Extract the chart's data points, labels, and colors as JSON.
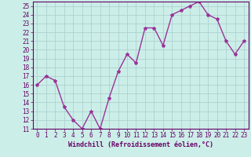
{
  "x": [
    0,
    1,
    2,
    3,
    4,
    5,
    6,
    7,
    8,
    9,
    10,
    11,
    12,
    13,
    14,
    15,
    16,
    17,
    18,
    19,
    20,
    21,
    22,
    23
  ],
  "y": [
    16,
    17,
    16.5,
    13.5,
    12,
    11,
    13,
    11,
    14.5,
    17.5,
    19.5,
    18.5,
    22.5,
    22.5,
    20.5,
    24,
    24.5,
    25,
    25.5,
    24,
    23.5,
    21,
    19.5,
    21
  ],
  "xlabel": "Windchill (Refroidissement éolien,°C)",
  "ylim": [
    11,
    25.5
  ],
  "xlim": [
    -0.5,
    23.5
  ],
  "yticks": [
    11,
    12,
    13,
    14,
    15,
    16,
    17,
    18,
    19,
    20,
    21,
    22,
    23,
    24,
    25
  ],
  "xticks": [
    0,
    1,
    2,
    3,
    4,
    5,
    6,
    7,
    8,
    9,
    10,
    11,
    12,
    13,
    14,
    15,
    16,
    17,
    18,
    19,
    20,
    21,
    22,
    23
  ],
  "line_color": "#993399",
  "marker": "*",
  "marker_size": 3,
  "linewidth": 1.0,
  "bg_color": "#cceee8",
  "grid_color": "#aacccc",
  "label_color": "#660066",
  "tick_color": "#660066",
  "spine_color": "#660066",
  "tick_fontsize": 5.5,
  "xlabel_fontsize": 6.0
}
